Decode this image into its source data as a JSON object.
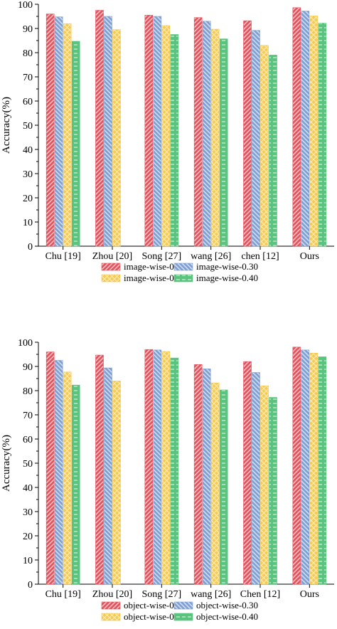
{
  "colors": {
    "series": [
      "#e8505b",
      "#7f9fd1",
      "#f6c950",
      "#58c47e"
    ],
    "series_light": [
      "#f7c2c6",
      "#d3def0",
      "#fcebb5",
      "#c4ebcf"
    ],
    "axis": "#000000"
  },
  "chart_data": [
    {
      "type": "bar",
      "title": "",
      "xlabel": "",
      "ylabel": "Accuracy(%)",
      "ylim": [
        0,
        100
      ],
      "yticks": [
        0,
        10,
        20,
        30,
        40,
        50,
        60,
        70,
        80,
        90,
        100
      ],
      "grid": false,
      "legend_position": "bottom-center",
      "categories": [
        "Chu [19]",
        "Zhou [20]",
        "Song [27]",
        "wang [26]",
        "chen [12]",
        "Ours"
      ],
      "series": [
        {
          "name": "image-wise-0.25",
          "values": [
            96.0,
            97.5,
            95.5,
            94.5,
            93.2,
            98.6
          ]
        },
        {
          "name": "image-wise-0.30",
          "values": [
            94.8,
            95.0,
            95.0,
            93.0,
            89.2,
            97.2
          ]
        },
        {
          "name": "image-wise-0.35",
          "values": [
            92.0,
            89.5,
            91.2,
            89.7,
            83.0,
            95.2
          ]
        },
        {
          "name": "image-wise-0.40",
          "values": [
            84.7,
            null,
            87.5,
            85.7,
            79.0,
            92.2
          ]
        }
      ]
    },
    {
      "type": "bar",
      "title": "",
      "xlabel": "",
      "ylabel": "Accuracy(%)",
      "ylim": [
        0,
        100
      ],
      "yticks": [
        0,
        10,
        20,
        30,
        40,
        50,
        60,
        70,
        80,
        90,
        100
      ],
      "grid": false,
      "legend_position": "bottom-center",
      "categories": [
        "Chu [19]",
        "Zhou [20]",
        "Song [27]",
        "wang [26]",
        "Chen [12]",
        "Ours"
      ],
      "series": [
        {
          "name": "object-wise-0.25",
          "values": [
            96.0,
            94.7,
            97.0,
            90.8,
            92.0,
            98.0
          ]
        },
        {
          "name": "object-wise-0.30",
          "values": [
            92.5,
            89.4,
            96.8,
            89.0,
            87.5,
            96.8
          ]
        },
        {
          "name": "object-wise-0.35",
          "values": [
            87.7,
            84.0,
            96.2,
            83.2,
            82.0,
            95.5
          ]
        },
        {
          "name": "object-wise-0.40",
          "values": [
            82.3,
            null,
            93.5,
            80.3,
            77.2,
            94.0
          ]
        }
      ]
    }
  ]
}
